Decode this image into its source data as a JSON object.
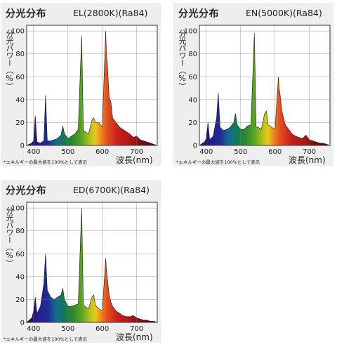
{
  "chart_data": [
    {
      "type": "area",
      "title": "分光分布",
      "label": "EL(2800K)(Ra84)",
      "ylabel": "分光パワー（%）",
      "xlabel": "波長(nm)",
      "note": "*エネルギーの最大値を100%として表示",
      "xlim": [
        380,
        760
      ],
      "ylim": [
        0,
        105
      ],
      "xticks": [
        "400",
        "500",
        "600",
        "700"
      ],
      "yticks": [
        "0",
        "20",
        "40",
        "60",
        "80",
        "100"
      ],
      "grid": true,
      "x": [
        380,
        395,
        400,
        405,
        410,
        420,
        430,
        435,
        440,
        450,
        460,
        470,
        480,
        485,
        490,
        500,
        510,
        520,
        530,
        540,
        545,
        550,
        560,
        570,
        575,
        580,
        590,
        600,
        610,
        612,
        615,
        620,
        625,
        630,
        640,
        650,
        660,
        670,
        680,
        690,
        700,
        710,
        720,
        730,
        740,
        750,
        760
      ],
      "y": [
        0,
        2,
        4,
        26,
        3,
        2,
        4,
        44,
        4,
        4,
        5,
        6,
        9,
        17,
        10,
        6,
        8,
        10,
        14,
        96,
        12,
        12,
        10,
        22,
        24,
        20,
        20,
        16,
        100,
        80,
        70,
        42,
        38,
        24,
        20,
        16,
        14,
        12,
        10,
        7,
        8,
        5,
        4,
        3,
        2,
        1,
        0
      ]
    },
    {
      "type": "area",
      "title": "分光分布",
      "label": "EN(5000K)(Ra84)",
      "ylabel": "分光パワー（%）",
      "xlabel": "波長(nm)",
      "note": "*エネルギーの最大値を100%として表示",
      "xlim": [
        380,
        760
      ],
      "ylim": [
        0,
        105
      ],
      "xticks": [
        "400",
        "500",
        "600",
        "700"
      ],
      "yticks": [
        "0",
        "20",
        "40",
        "60",
        "80",
        "100"
      ],
      "grid": true,
      "x": [
        380,
        395,
        400,
        405,
        410,
        420,
        430,
        435,
        440,
        450,
        460,
        470,
        480,
        485,
        490,
        500,
        510,
        520,
        530,
        540,
        545,
        550,
        560,
        570,
        575,
        580,
        590,
        600,
        610,
        612,
        615,
        620,
        625,
        630,
        640,
        650,
        660,
        670,
        680,
        690,
        700,
        710,
        720,
        730,
        740,
        750,
        760
      ],
      "y": [
        0,
        3,
        6,
        20,
        5,
        8,
        24,
        46,
        16,
        13,
        14,
        16,
        20,
        28,
        18,
        14,
        14,
        17,
        18,
        98,
        16,
        16,
        14,
        28,
        30,
        18,
        16,
        14,
        60,
        50,
        44,
        30,
        24,
        18,
        14,
        10,
        8,
        7,
        6,
        9,
        5,
        4,
        3,
        2,
        2,
        1,
        0
      ]
    },
    {
      "type": "area",
      "title": "分光分布",
      "label": "ED(6700K)(Ra84)",
      "ylabel": "分光パワー（%）",
      "xlabel": "波長(nm)",
      "note": "*エネルギーの最大値を100%として表示",
      "xlim": [
        380,
        760
      ],
      "ylim": [
        0,
        105
      ],
      "xticks": [
        "400",
        "500",
        "600",
        "700"
      ],
      "yticks": [
        "0",
        "20",
        "40",
        "60",
        "80",
        "100"
      ],
      "grid": true,
      "x": [
        380,
        395,
        400,
        405,
        410,
        420,
        430,
        435,
        440,
        450,
        460,
        470,
        480,
        485,
        490,
        500,
        510,
        520,
        530,
        540,
        545,
        550,
        560,
        570,
        575,
        580,
        590,
        600,
        610,
        612,
        615,
        620,
        625,
        630,
        640,
        650,
        660,
        670,
        680,
        690,
        700,
        710,
        720,
        730,
        740,
        750,
        760
      ],
      "y": [
        0,
        4,
        10,
        22,
        8,
        14,
        34,
        60,
        28,
        22,
        20,
        22,
        24,
        30,
        20,
        14,
        14,
        15,
        16,
        100,
        15,
        14,
        12,
        22,
        24,
        15,
        12,
        10,
        56,
        46,
        38,
        24,
        18,
        14,
        10,
        8,
        6,
        5,
        5,
        6,
        4,
        3,
        2,
        2,
        1,
        1,
        0
      ]
    }
  ]
}
